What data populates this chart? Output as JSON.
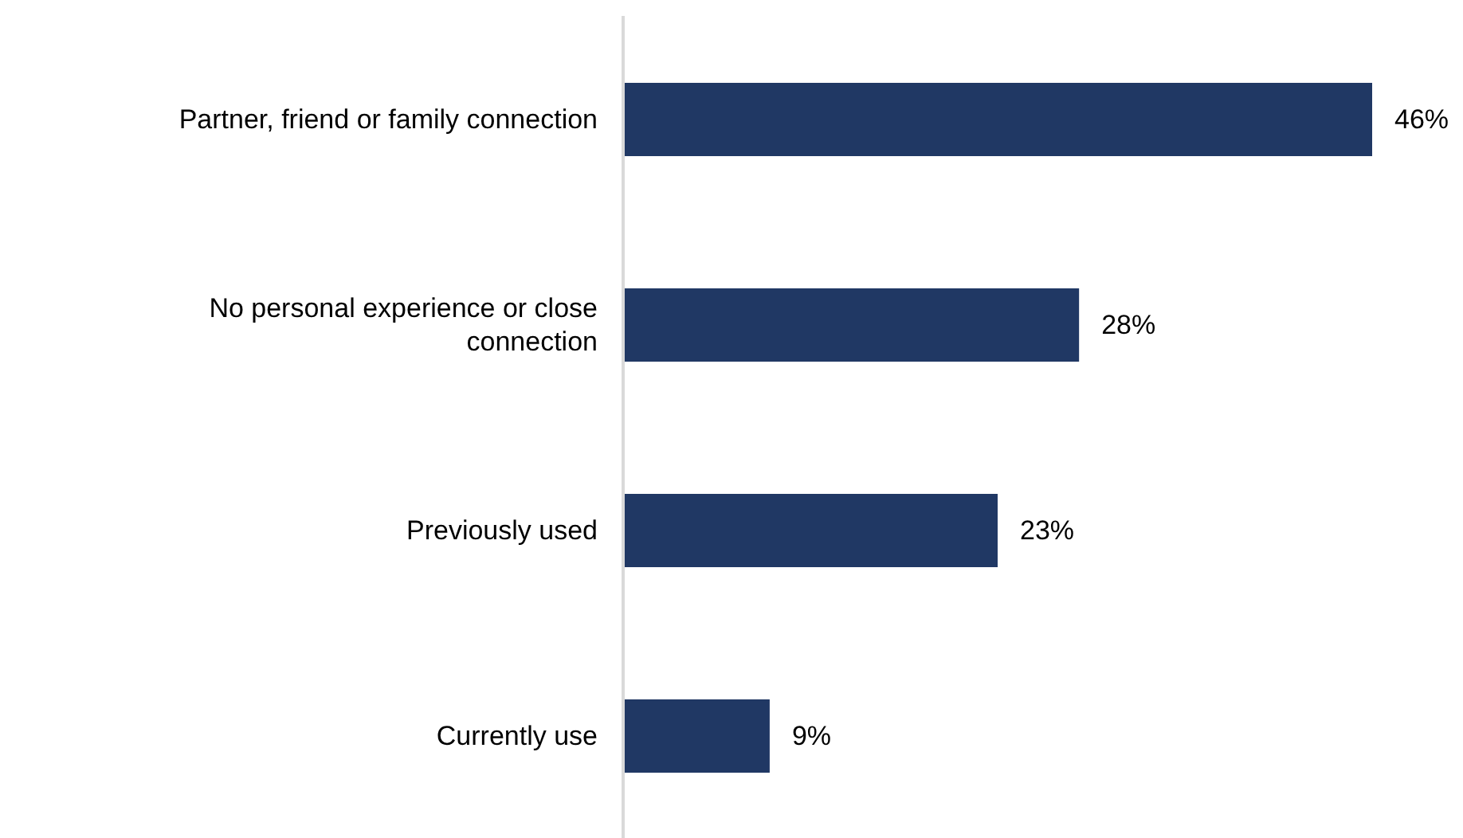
{
  "chart_data": {
    "type": "bar",
    "orientation": "horizontal",
    "categories": [
      "Partner, friend or family connection",
      "No personal experience or close connection",
      "Previously used",
      "Currently use"
    ],
    "values": [
      46,
      28,
      23,
      9
    ],
    "value_labels": [
      "46%",
      "28%",
      "23%",
      "9%"
    ],
    "color": "#203864",
    "grid": false,
    "legend": false
  }
}
